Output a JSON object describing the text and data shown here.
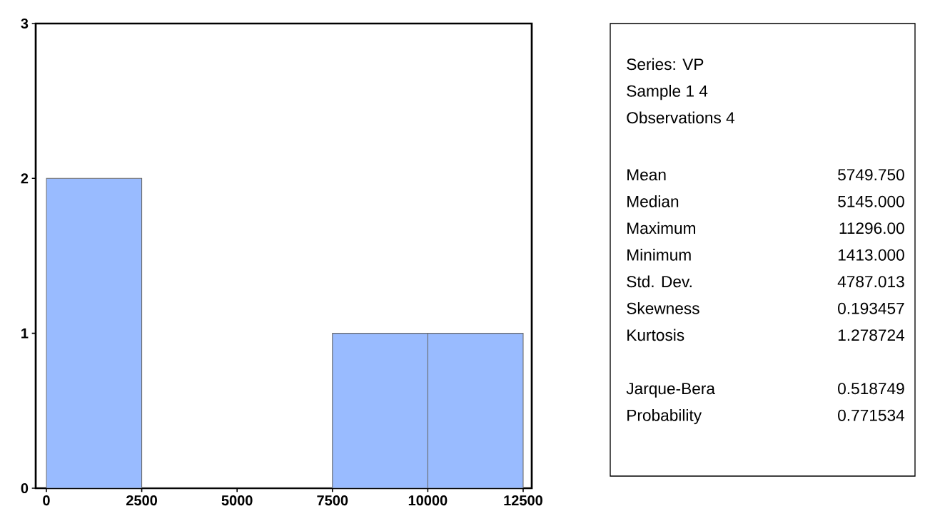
{
  "chart_data": [
    {
      "type": "histogram",
      "bins": [
        0,
        2500,
        5000,
        7500,
        10000,
        12500
      ],
      "values": [
        2,
        0,
        0,
        1,
        1
      ],
      "color": "#99bbff",
      "xlim": [
        -280,
        12725
      ],
      "ylim": [
        0,
        3
      ],
      "xticks": [
        0,
        2500,
        5000,
        7500,
        10000,
        12500
      ],
      "yticks": [
        0,
        1,
        2,
        3
      ],
      "grid": false
    },
    {
      "type": "other",
      "annotations": [
        "Series: VP",
        "Sample 1 4",
        "Observations 4",
        "Mean",
        "5749.750",
        "Median",
        "5145.000",
        "Maximum",
        "11296.00",
        "Minimum",
        "1413.000",
        "Std. Dev.",
        "4787.013",
        "Skewness",
        "0.193457",
        "Kurtosis",
        "1.278724",
        "Jarque-Bera",
        "0.518749",
        "Probability",
        "0.771534"
      ]
    }
  ]
}
